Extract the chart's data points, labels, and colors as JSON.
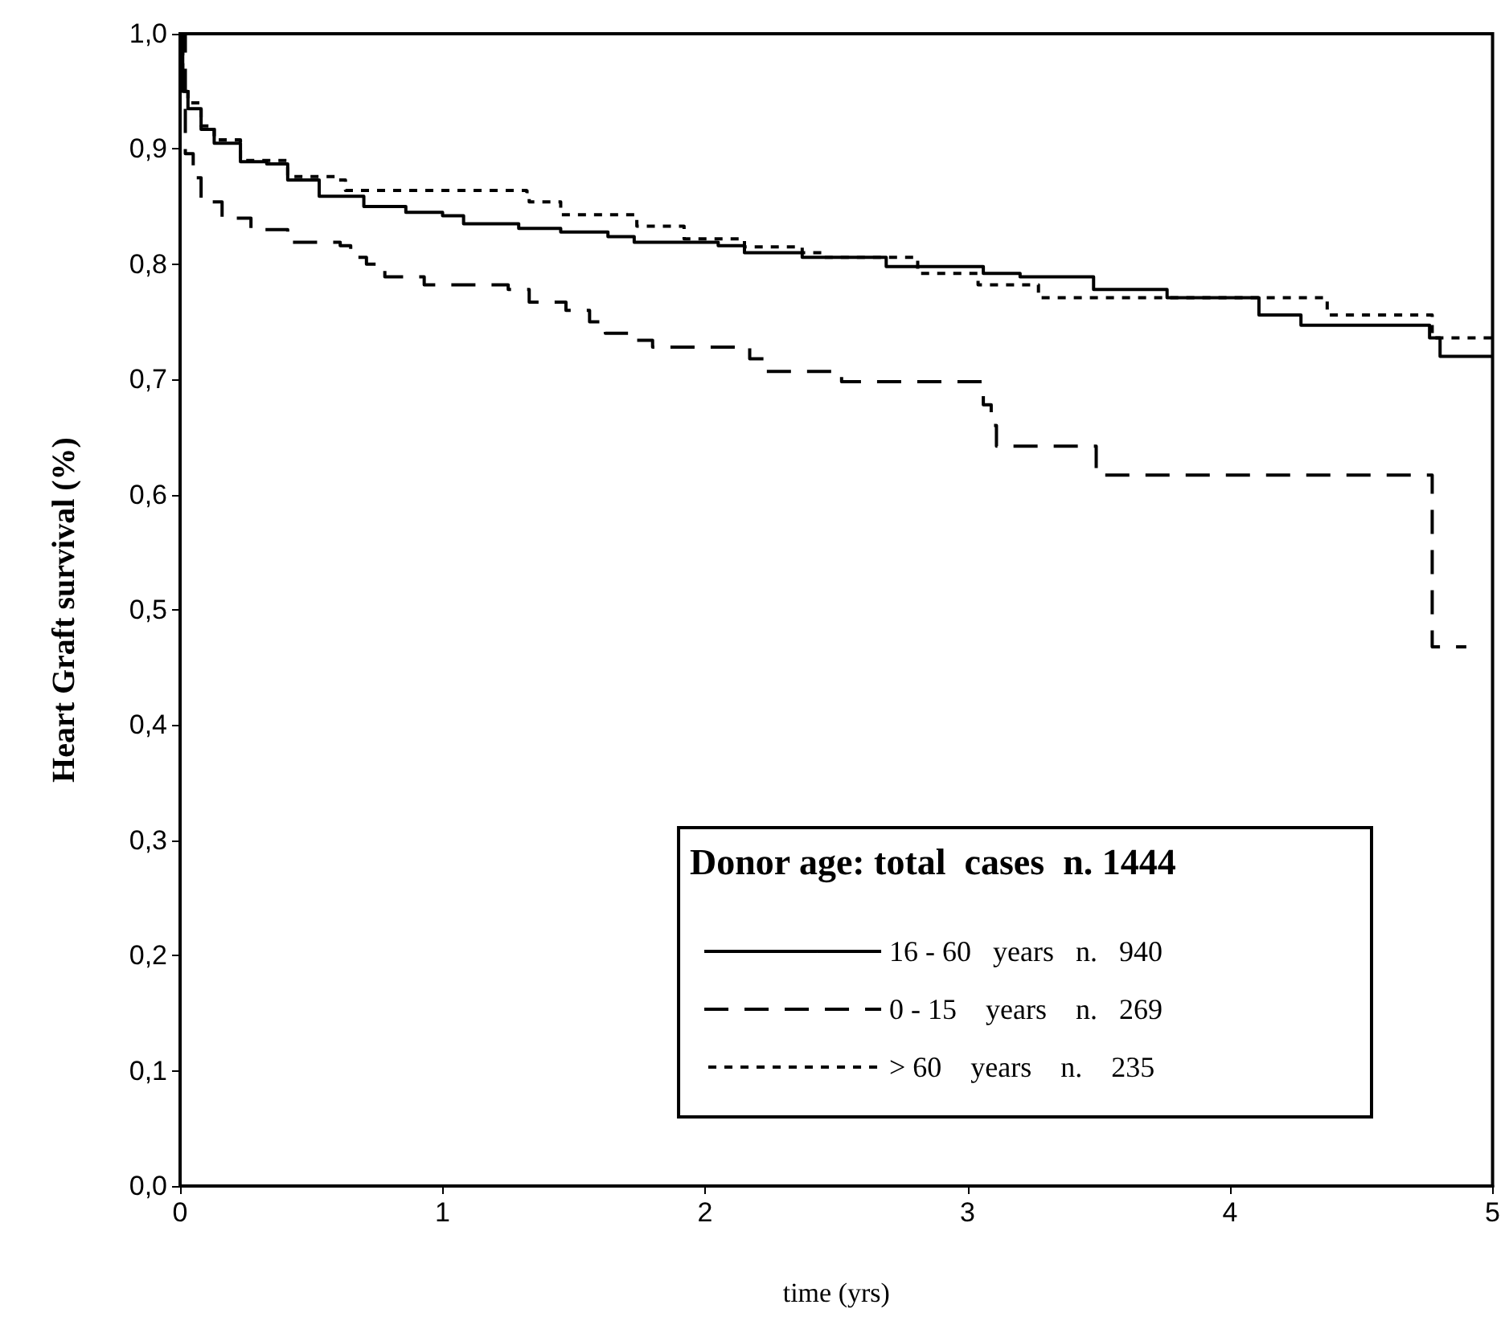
{
  "chart_data": {
    "type": "step",
    "xlabel": "time (yrs)",
    "ylabel": "Heart Graft survival (%)",
    "legend_title": "Donor age: total  cases  n. 1444",
    "legend": "bottom right",
    "grid": false,
    "marker": "none",
    "xlim": [
      0,
      5
    ],
    "xticks": [
      0,
      1,
      2,
      3,
      4,
      5
    ],
    "ylim": [
      0,
      1
    ],
    "yticks": [
      {
        "value": 0,
        "label": "0,0"
      },
      {
        "value": 0.1,
        "label": "0,1"
      },
      {
        "value": 0.2,
        "label": "0,2"
      },
      {
        "value": 0.3,
        "label": "0,3"
      },
      {
        "value": 0.4,
        "label": "0,4"
      },
      {
        "value": 0.5,
        "label": "0,5"
      },
      {
        "value": 0.6,
        "label": "0,6"
      },
      {
        "value": 0.7,
        "label": "0,7"
      },
      {
        "value": 0.8,
        "label": "0,8"
      },
      {
        "value": 0.9,
        "label": "0,9"
      },
      {
        "value": 1,
        "label": "1,0"
      }
    ],
    "series": [
      {
        "name": "16 - 60   years   n.   940",
        "color": "#000000",
        "line_style": "solid",
        "x": [
          0,
          0.01,
          0.03,
          0.08,
          0.13,
          0.23,
          0.33,
          0.41,
          0.53,
          0.7,
          0.86,
          1.0,
          1.08,
          1.29,
          1.45,
          1.63,
          1.73,
          2.05,
          2.15,
          2.37,
          2.69,
          3.06,
          3.2,
          3.48,
          3.76,
          4.11,
          4.27,
          4.76,
          4.8,
          5
        ],
        "values": [
          1,
          0.95,
          0.935,
          0.917,
          0.905,
          0.889,
          0.887,
          0.873,
          0.859,
          0.85,
          0.845,
          0.842,
          0.835,
          0.831,
          0.828,
          0.824,
          0.819,
          0.816,
          0.81,
          0.806,
          0.798,
          0.792,
          0.789,
          0.778,
          0.771,
          0.756,
          0.747,
          0.736,
          0.72,
          0.72
        ]
      },
      {
        "name": "0 - 15    years    n.   269",
        "color": "#000000",
        "line_style": "dashed",
        "x": [
          0,
          0.02,
          0.05,
          0.08,
          0.16,
          0.27,
          0.41,
          0.61,
          0.65,
          0.71,
          0.78,
          0.93,
          1.25,
          1.33,
          1.47,
          1.56,
          1.62,
          1.74,
          1.8,
          2.17,
          2.23,
          2.52,
          3.06,
          3.09,
          3.11,
          3.49,
          4.77,
          4.9
        ],
        "values": [
          1,
          0.896,
          0.875,
          0.854,
          0.84,
          0.83,
          0.819,
          0.816,
          0.806,
          0.8,
          0.789,
          0.782,
          0.778,
          0.767,
          0.76,
          0.75,
          0.74,
          0.734,
          0.728,
          0.718,
          0.707,
          0.698,
          0.678,
          0.66,
          0.642,
          0.617,
          0.468,
          0.468
        ]
      },
      {
        "name": "> 60    years    n.    235",
        "color": "#000000",
        "line_style": "dotted",
        "x": [
          0,
          0.01,
          0.03,
          0.08,
          0.13,
          0.23,
          0.41,
          0.59,
          0.63,
          1.32,
          1.33,
          1.45,
          1.74,
          1.92,
          2.15,
          2.37,
          2.45,
          2.81,
          3.04,
          3.27,
          4.37,
          4.77,
          5
        ],
        "values": [
          1,
          0.955,
          0.94,
          0.92,
          0.908,
          0.89,
          0.876,
          0.873,
          0.864,
          0.863,
          0.854,
          0.843,
          0.833,
          0.822,
          0.815,
          0.81,
          0.806,
          0.792,
          0.782,
          0.771,
          0.756,
          0.736,
          0.736
        ]
      }
    ]
  }
}
